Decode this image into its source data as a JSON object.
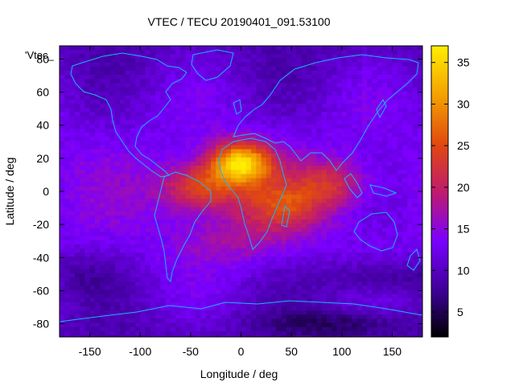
{
  "chart_data": {
    "type": "heatmap",
    "title": "VTEC / TECU 20190401_091.53100",
    "xlabel": "Longitude / deg",
    "ylabel": "Latitude / deg",
    "legend_label": "'Vtec_",
    "xlim": [
      -180,
      180
    ],
    "ylim": [
      -88,
      88
    ],
    "x_ticks": [
      -150,
      -100,
      -50,
      0,
      50,
      100,
      150
    ],
    "y_ticks": [
      -80,
      -60,
      -40,
      -20,
      0,
      20,
      40,
      60,
      80
    ],
    "colorbar": {
      "range": [
        2,
        37
      ],
      "ticks": [
        5,
        10,
        15,
        20,
        25,
        30,
        35
      ],
      "palette": [
        "#000000",
        "#3a0090",
        "#7a00ff",
        "#c01c6c",
        "#e04810",
        "#f39c00",
        "#ffef00"
      ]
    },
    "grid_resolution_deg": {
      "lon": 5,
      "lat": 2.5
    },
    "value_range": [
      2,
      37
    ],
    "anomaly_centers": [
      {
        "lon": 0,
        "lat": 17,
        "peak": 36
      },
      {
        "lon": -40,
        "lat": 2,
        "peak": 31
      },
      {
        "lon": 40,
        "lat": -8,
        "peak": 28
      },
      {
        "lon": 90,
        "lat": 5,
        "peak": 22
      }
    ],
    "grid": false
  }
}
